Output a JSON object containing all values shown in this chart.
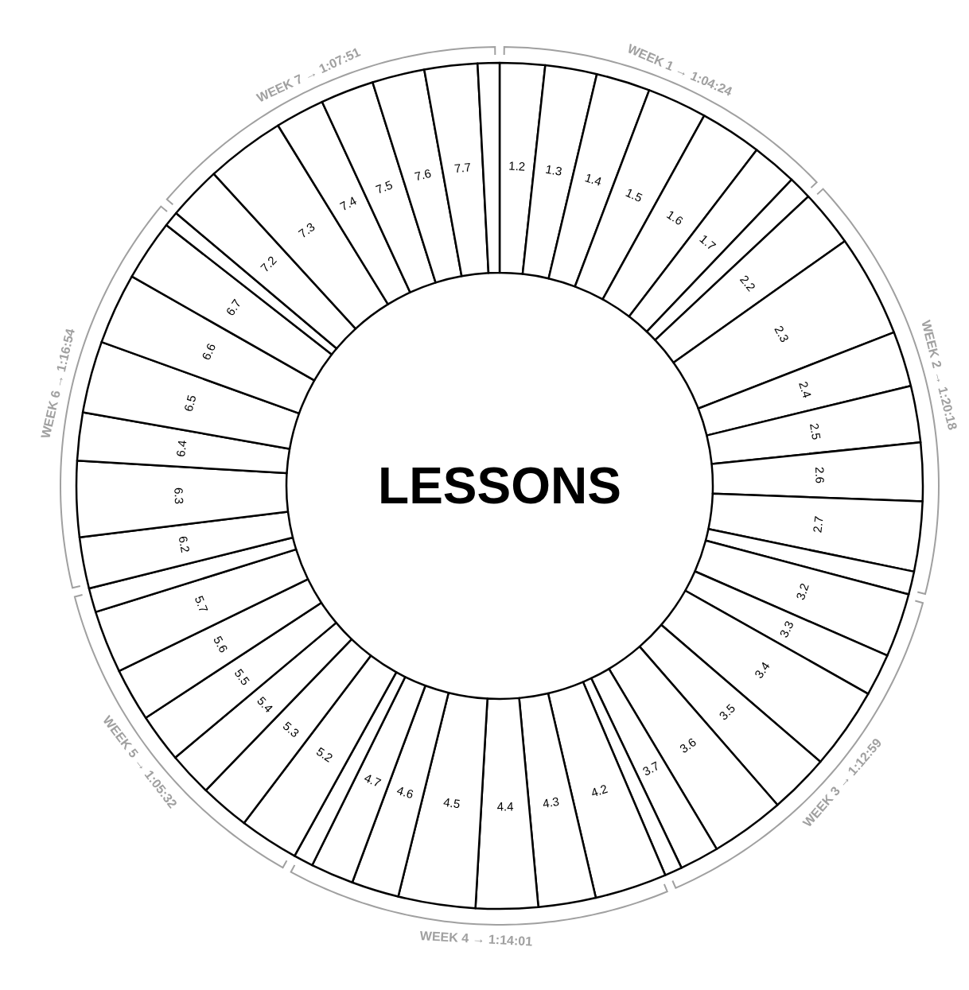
{
  "chart_data": {
    "type": "donut",
    "title": "LESSONS",
    "categories": [
      "1.2",
      "1.3",
      "1.4",
      "1.5",
      "1.6",
      "1.7",
      null,
      "2.2",
      "2.3",
      "2.4",
      "2.5",
      "2.6",
      "2.7",
      null,
      "3.2",
      "3.3",
      "3.4",
      "3.5",
      "3.6",
      "3.7",
      null,
      "4.2",
      "4.3",
      "4.4",
      "4.5",
      "4.6",
      "4.7",
      null,
      "5.2",
      "5.3",
      "5.4",
      "5.5",
      "5.6",
      "5.7",
      null,
      "6.2",
      "6.3",
      "6.4",
      "6.5",
      "6.6",
      "6.7",
      null,
      "7.2",
      "7.3",
      "7.4",
      "7.5",
      "7.6",
      "7.7",
      null
    ],
    "values": [
      1.72,
      1.97,
      2.06,
      2.28,
      2.36,
      1.73,
      0.89,
      2.17,
      3.91,
      2.11,
      2.16,
      2.22,
      2.67,
      0.88,
      2.44,
      1.61,
      3.13,
      2.29,
      2.83,
      1.5,
      0.67,
      2.75,
      2.19,
      2.37,
      2.94,
      1.81,
      1.64,
      0.75,
      2.27,
      1.89,
      1.69,
      1.86,
      2.03,
      2.39,
      0.92,
      1.96,
      2.89,
      1.83,
      2.74,
      2.72,
      2.33,
      0.58,
      2.05,
      3.03,
      1.88,
      2.04,
      2.0,
      2.02,
      0.83
    ],
    "colors": [
      "#ffffff",
      "#ffffff",
      "#ffffff",
      "#ffffff",
      "#ffffff",
      "#ffffff",
      "#ffffff",
      "#ffffff",
      "#ffffff",
      "#ffffff",
      "#ffffff",
      "#ffffff",
      "#ffffff",
      "#ffffff",
      "#ffffff",
      "#ffffff",
      "#ffffff",
      "#ffffff",
      "#ffffff",
      "#ffffff",
      "#ffffff",
      "#ffffff",
      "#ffffff",
      "#ffffff",
      "#ffffff",
      "#ffffff",
      "#ffffff",
      "#ffffff",
      "#ffffff",
      "#ffffff",
      "#ffffff",
      "#ffffff",
      "#ffffff",
      "#ffffff",
      "#ffffff",
      "#ffffff",
      "#ffffff",
      "#ffffff",
      "#ffffff",
      "#ffffff",
      "#ffffff",
      "#ffffff",
      "#ffffff",
      "#ffffff",
      "#ffffff",
      "#ffffff",
      "#ffffff",
      "#ffffff",
      "#ffffff"
    ],
    "annotations": [
      "WEEK 1 → 1:04:24",
      "WEEK 2 → 1:20:18",
      "WEEK 3 → 1:12:59",
      "WEEK 4 → 1:14:01",
      "WEEK 5 → 1:05:32",
      "WEEK 6 → 1:16:54",
      "WEEK 7 → 1:07:51"
    ]
  }
}
